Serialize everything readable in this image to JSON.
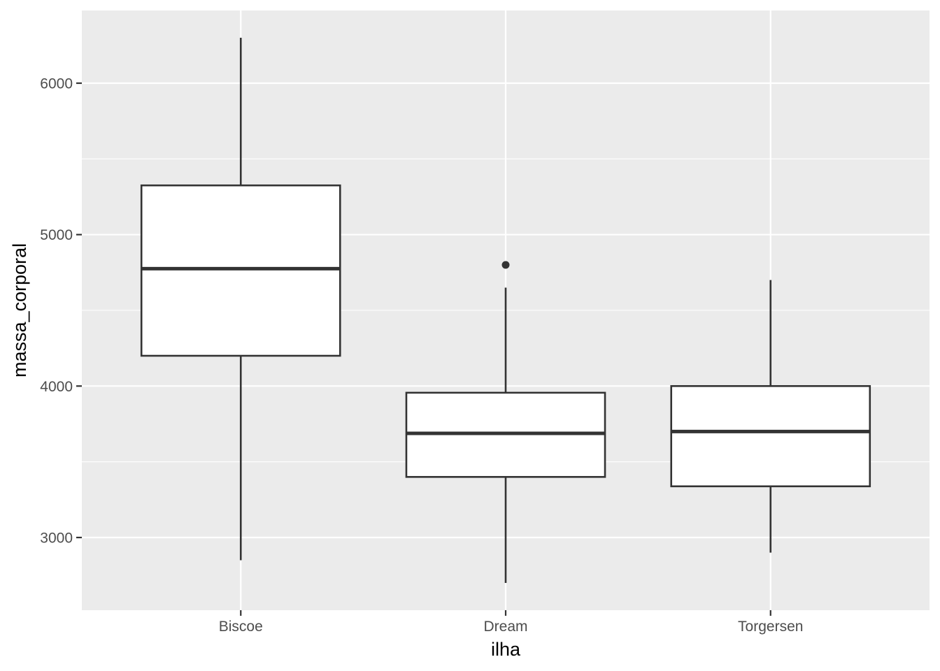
{
  "chart_data": {
    "type": "boxplot",
    "xlabel": "ilha",
    "ylabel": "massa_corporal",
    "ylim": [
      2520,
      6480
    ],
    "y_ticks": [
      3000,
      4000,
      5000,
      6000
    ],
    "y_minor_ticks": [
      3500,
      4500,
      5500
    ],
    "grid": true,
    "categories": [
      "Biscoe",
      "Dream",
      "Torgersen"
    ],
    "boxes": [
      {
        "category": "Biscoe",
        "lower_whisker": 2850,
        "q1": 4200,
        "median": 4775,
        "q3": 5325,
        "upper_whisker": 6300,
        "outliers": []
      },
      {
        "category": "Dream",
        "lower_whisker": 2700,
        "q1": 3400,
        "median": 3687.5,
        "q3": 3956,
        "upper_whisker": 4650,
        "outliers": [
          4800
        ]
      },
      {
        "category": "Torgersen",
        "lower_whisker": 2900,
        "q1": 3338,
        "median": 3700,
        "q3": 4000,
        "upper_whisker": 4700,
        "outliers": []
      }
    ],
    "colors": {
      "panel_background": "#ebebeb",
      "grid": "#ffffff",
      "box_fill": "#ffffff",
      "box_stroke": "#333333",
      "tick_mark": "#333333",
      "tick_label": "#4d4d4d"
    }
  }
}
